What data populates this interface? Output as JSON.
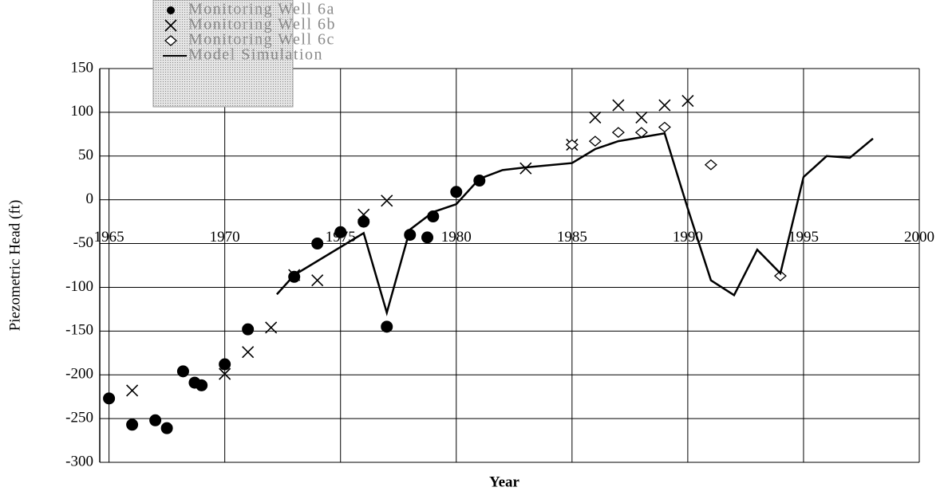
{
  "chart_data": {
    "type": "scatter",
    "x_label": "Year",
    "y_label": "Piezometric Head (ft)",
    "xlim": [
      1964.6,
      2000
    ],
    "xticks": [
      1965,
      1970,
      1975,
      1980,
      1985,
      1990,
      1995,
      2000
    ],
    "ylim": [
      -300,
      150
    ],
    "yticks": [
      -300,
      -250,
      -200,
      -150,
      -100,
      -50,
      0,
      50,
      100,
      150
    ],
    "grid": true,
    "legend": "top-left",
    "series": [
      {
        "name": "Monitoring Well 6a",
        "color": "#000000",
        "marker": "dot",
        "x": [
          1965,
          1966,
          1967,
          1967.5,
          1968.2,
          1968.7,
          1969,
          1970,
          1971,
          1973,
          1974,
          1975,
          1976,
          1977,
          1978,
          1978.75,
          1979,
          1980,
          1981
        ],
        "values": [
          -227,
          -257,
          -252,
          -261,
          -196,
          -209,
          -212,
          -188,
          -148,
          -88,
          -50,
          -37,
          -25,
          -145,
          -40,
          -43,
          -19,
          9,
          22
        ]
      },
      {
        "name": "Monitoring Well 6b",
        "color": "#000000",
        "marker": "cross",
        "x": [
          1966,
          1970,
          1971,
          1972,
          1973,
          1974,
          1976,
          1977,
          1983,
          1985,
          1986,
          1987,
          1988,
          1989,
          1990
        ],
        "values": [
          -218,
          -199,
          -174,
          -146,
          -86,
          -92,
          -17,
          -1,
          36,
          63,
          94,
          108,
          94,
          108,
          113
        ]
      },
      {
        "name": "Monitoring Well 6c",
        "color": "#000000",
        "marker": "diamond",
        "x": [
          1985,
          1986,
          1987,
          1988,
          1989,
          1991,
          1994
        ],
        "values": [
          63,
          67,
          77,
          77,
          83,
          40,
          -87
        ]
      },
      {
        "name": "Model Simulation",
        "color": "#000000",
        "marker": "line",
        "x": [
          1972.25,
          1973,
          1976,
          1977,
          1978,
          1979,
          1980,
          1981,
          1982,
          1983,
          1985,
          1986,
          1987,
          1989,
          1990,
          1991,
          1992,
          1993,
          1994,
          1995,
          1996,
          1997,
          1998
        ],
        "values": [
          -108,
          -86,
          -38,
          -129,
          -34,
          -14,
          -5,
          24,
          34,
          37,
          42,
          58,
          67,
          76,
          -10,
          -92,
          -109,
          -57,
          -84,
          26,
          50,
          48,
          70
        ]
      }
    ]
  }
}
